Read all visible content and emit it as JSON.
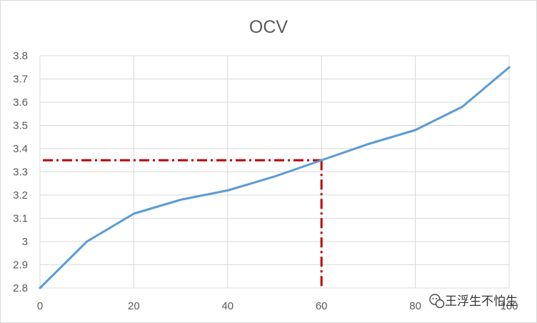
{
  "chart_data": {
    "type": "line",
    "title": "OCV",
    "xlabel": "",
    "ylabel": "",
    "x": [
      0,
      10,
      20,
      30,
      40,
      50,
      60,
      70,
      80,
      90,
      100
    ],
    "series": [
      {
        "values": [
          2.8,
          3.0,
          3.12,
          3.18,
          3.22,
          3.28,
          3.35,
          3.42,
          3.48,
          3.58,
          3.75
        ],
        "color": "#5b9bd5"
      }
    ],
    "xlim": [
      0,
      100
    ],
    "ylim": [
      2.8,
      3.8
    ],
    "x_ticks": [
      "0",
      "20",
      "40",
      "60",
      "80",
      "100"
    ],
    "y_ticks": [
      "2.8",
      "2.9",
      "3",
      "3.1",
      "3.2",
      "3.3",
      "3.4",
      "3.5",
      "3.6",
      "3.7",
      "3.8"
    ],
    "grid": true,
    "reference": {
      "x": 60,
      "y": 3.35,
      "color": "#c00000",
      "style": "dash-dot"
    }
  },
  "watermark": {
    "text": "王浮生不怕生",
    "icon": "wechat-icon"
  }
}
